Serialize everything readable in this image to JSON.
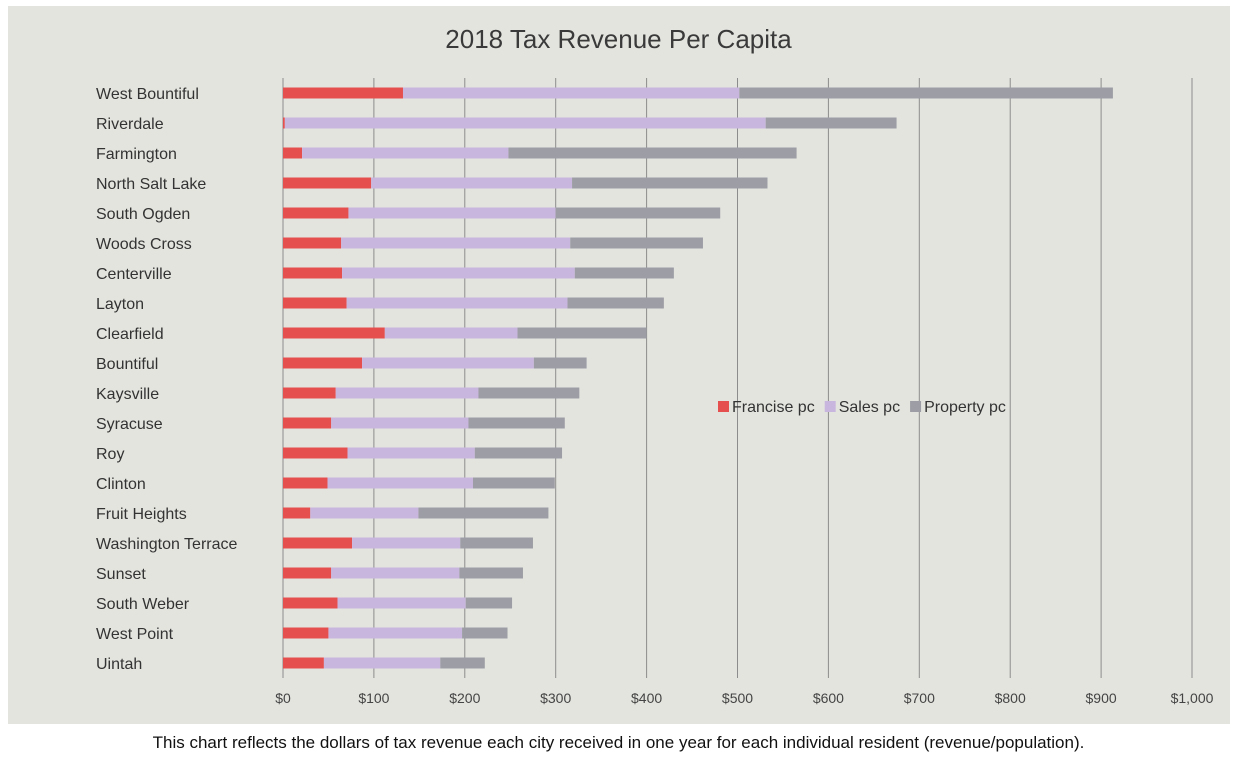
{
  "chart_data": {
    "type": "bar",
    "orientation": "horizontal",
    "stacked": true,
    "title": "2018 Tax Revenue Per Capita",
    "caption": "This chart reflects the dollars of tax revenue each city received in one year for each individual resident (revenue/population).",
    "categories": [
      "West Bountiful",
      "Riverdale",
      "Farmington",
      "North Salt Lake",
      "South Ogden",
      "Woods Cross",
      "Centerville",
      "Layton",
      "Clearfield",
      "Bountiful",
      "Kaysville",
      "Syracuse",
      "Roy",
      "Clinton",
      "Fruit Heights",
      "Washington Terrace",
      "Sunset",
      "South Weber",
      "West Point",
      "Uintah"
    ],
    "series": [
      {
        "name": "Francise pc",
        "color": "#e5504f",
        "values": [
          132,
          2,
          21,
          97,
          72,
          64,
          65,
          70,
          112,
          87,
          58,
          53,
          71,
          49,
          30,
          76,
          53,
          60,
          50,
          45
        ]
      },
      {
        "name": "Sales pc",
        "color": "#c9b6de",
        "values": [
          370,
          529,
          227,
          221,
          228,
          252,
          256,
          243,
          146,
          189,
          157,
          151,
          140,
          160,
          119,
          119,
          141,
          141,
          147,
          128
        ]
      },
      {
        "name": "Property pc",
        "color": "#9d9ea5",
        "values": [
          411,
          144,
          317,
          215,
          181,
          146,
          109,
          106,
          142,
          58,
          111,
          106,
          96,
          90,
          143,
          80,
          70,
          51,
          50,
          49
        ]
      }
    ],
    "x_ticks": [
      "$0",
      "$100",
      "$200",
      "$300",
      "$400",
      "$500",
      "$600",
      "$700",
      "$800",
      "$900",
      "$1,000"
    ],
    "xlim": [
      0,
      1000
    ],
    "grid": "vertical",
    "legend_position": "right-center"
  }
}
